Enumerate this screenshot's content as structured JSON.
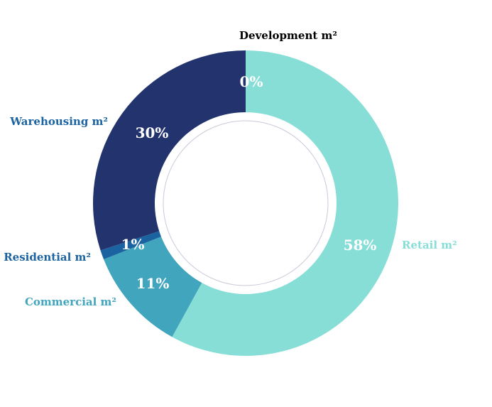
{
  "chart_data": {
    "type": "pie",
    "variant": "donut",
    "slices": [
      {
        "name": "Development m²",
        "percent": 0,
        "value_label": "0%",
        "color": "#000000"
      },
      {
        "name": "Retail m²",
        "percent": 58,
        "value_label": "58%",
        "color": "#87ded6"
      },
      {
        "name": "Commercial m²",
        "percent": 11,
        "value_label": "11%",
        "color": "#41a5bd"
      },
      {
        "name": "Residential m²",
        "percent": 1,
        "value_label": "1%",
        "color": "#1b63a0"
      },
      {
        "name": "Warehousing m²",
        "percent": 30,
        "value_label": "30%",
        "color": "#22336e"
      }
    ],
    "label_colors": {
      "Development m²": "#000000",
      "Retail m²": "#87ded6",
      "Commercial m²": "#41a5bd",
      "Residential m²": "#1b63a0",
      "Warehousing m²": "#1b63a0"
    },
    "legend": "none",
    "start_angle": "top",
    "direction": "clockwise"
  }
}
